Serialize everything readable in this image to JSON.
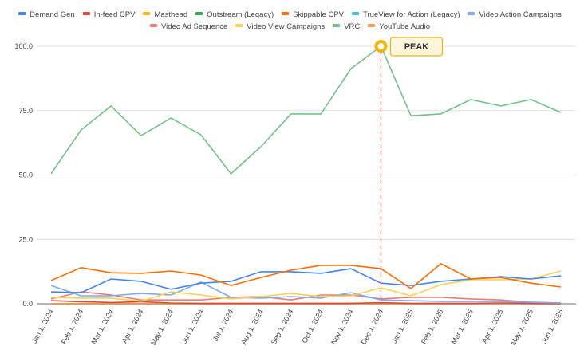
{
  "chart_data": {
    "type": "line",
    "title": "",
    "xlabel": "",
    "ylabel": "",
    "ylim": [
      0,
      100
    ],
    "yticks": [
      "0.0",
      "25.0",
      "50.0",
      "75.0",
      "100.0"
    ],
    "grid": true,
    "legend_position": "top",
    "categories": [
      "Jan 1, 2024",
      "Feb 1, 2024",
      "Mar 1, 2024",
      "Apr 1, 2024",
      "May 1, 2024",
      "Jun 1, 2024",
      "Jul 1, 2024",
      "Aug 1, 2024",
      "Sep 1, 2024",
      "Oct 1, 2024",
      "Nov 1, 2024",
      "Dec 1, 2024",
      "Jan 1, 2025",
      "Feb 1, 2025",
      "Mar 1, 2025",
      "Apr 1, 2025",
      "May 1, 2025",
      "Jun 1, 2025"
    ],
    "series": [
      {
        "name": "Demand Gen",
        "color": "#4285f4",
        "values": [
          4.6,
          4.3,
          9.6,
          8.7,
          5.6,
          8.0,
          8.7,
          12.4,
          12.4,
          11.8,
          13.6,
          8.0,
          7.1,
          8.7,
          9.6,
          10.5,
          9.6,
          10.8
        ]
      },
      {
        "name": "In-feed CPV",
        "color": "#ea4335",
        "values": [
          1.2,
          0.8,
          0.5,
          0.8,
          0.3,
          0.2,
          0.2,
          0.2,
          0.2,
          0.2,
          0.2,
          0.4,
          0.2,
          0.2,
          0.2,
          0.3,
          0.2,
          0.1
        ]
      },
      {
        "name": "Masthead",
        "color": "#fbbc04",
        "values": [
          0,
          0,
          0,
          0,
          0,
          0,
          0,
          0,
          0,
          0,
          0,
          0,
          0,
          0,
          0,
          0,
          0,
          0
        ]
      },
      {
        "name": "Outstream (Legacy)",
        "color": "#34a853",
        "values": [
          0,
          0,
          0,
          0,
          0,
          0,
          0,
          0,
          0,
          0,
          0,
          0,
          0,
          0,
          0,
          0,
          0,
          0
        ]
      },
      {
        "name": "Skippable CPV",
        "color": "#ff6d01",
        "values": [
          9.0,
          14.0,
          12.0,
          11.8,
          12.7,
          11.1,
          7.1,
          10.2,
          13.0,
          14.9,
          14.9,
          13.6,
          5.9,
          15.5,
          9.6,
          10.2,
          8.0,
          6.5
        ]
      },
      {
        "name": "TrueView for Action (Legacy)",
        "color": "#46bdc6",
        "values": [
          0,
          0,
          0,
          0,
          0,
          0,
          0,
          0,
          0,
          0,
          0,
          0,
          0,
          0,
          0,
          0,
          0,
          0
        ]
      },
      {
        "name": "Video Action Campaigns",
        "color": "#7baaf7",
        "values": [
          7.1,
          3.1,
          3.1,
          4.0,
          3.4,
          8.4,
          2.5,
          2.2,
          2.8,
          2.2,
          4.3,
          1.5,
          1.2,
          0.9,
          0.9,
          0.9,
          0.6,
          0.3
        ]
      },
      {
        "name": "Video Ad Sequence",
        "color": "#f07b72",
        "values": [
          1.9,
          4.6,
          3.4,
          1.5,
          1.5,
          1.5,
          2.5,
          2.8,
          1.5,
          3.4,
          3.4,
          1.9,
          2.5,
          2.5,
          1.9,
          1.5,
          0.6,
          0.3
        ]
      },
      {
        "name": "Video View Campaigns",
        "color": "#fcd04f",
        "values": [
          2.5,
          2.2,
          2.2,
          1.0,
          4.6,
          3.4,
          1.9,
          2.8,
          4.0,
          2.8,
          3.1,
          6.2,
          3.1,
          7.4,
          9.3,
          9.3,
          9.6,
          12.7
        ]
      },
      {
        "name": "VRC",
        "color": "#71c287",
        "values": [
          50.5,
          67.5,
          76.8,
          65.3,
          72.1,
          65.6,
          50.5,
          61.0,
          73.7,
          73.7,
          91.3,
          100.0,
          73.0,
          73.7,
          79.3,
          76.8,
          79.3,
          74.3
        ]
      },
      {
        "name": "YouTube Audio",
        "color": "#ff994d",
        "values": [
          0,
          0,
          0,
          0,
          0,
          0,
          0,
          0,
          0,
          0,
          0,
          0,
          0,
          0,
          0,
          0,
          0,
          0
        ]
      }
    ],
    "annotations": [
      {
        "text": "PEAK",
        "category": "Dec 1, 2024",
        "value": 100.0,
        "series": "VRC",
        "line_color": "#ea4335",
        "marker_color": "#f4b400"
      }
    ]
  }
}
